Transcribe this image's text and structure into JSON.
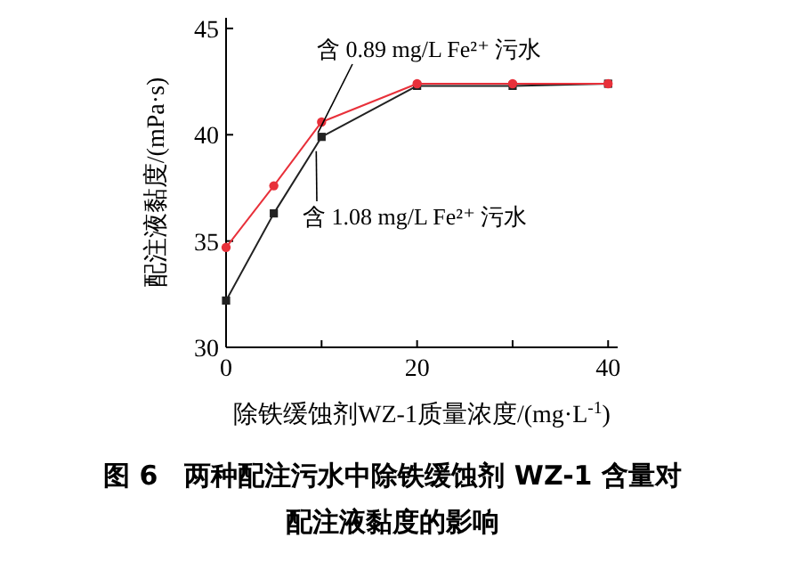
{
  "chart_data": {
    "type": "line",
    "title": "图 6　两种配注污水中除铁缓蚀剂 WZ-1 含量对配注液黏度的影响",
    "xlabel": "除铁缓蚀剂WZ-1质量浓度/(mg·L$^{-1}$)",
    "ylabel": "配注液黏度/(mPa·s)",
    "x": [
      0,
      5,
      10,
      20,
      30,
      40
    ],
    "series": [
      {
        "name": "含 0.89 mg/L Fe²⁺ 污水",
        "color": "#e8303a",
        "marker": "circle",
        "values": [
          34.7,
          37.6,
          40.6,
          42.4,
          42.4,
          42.4
        ]
      },
      {
        "name": "含 1.08 mg/L Fe²⁺ 污水",
        "color": "#222222",
        "marker": "square",
        "values": [
          32.2,
          36.3,
          39.9,
          42.3,
          42.3,
          42.4
        ]
      }
    ],
    "xlim": [
      0,
      41
    ],
    "ylim": [
      30,
      45.5
    ],
    "xticks": [
      0,
      {
        "value": 10,
        "label": null
      },
      20,
      {
        "value": 30,
        "label": null
      },
      40
    ],
    "yticks": [
      30,
      35,
      40,
      45
    ],
    "grid": false
  }
}
